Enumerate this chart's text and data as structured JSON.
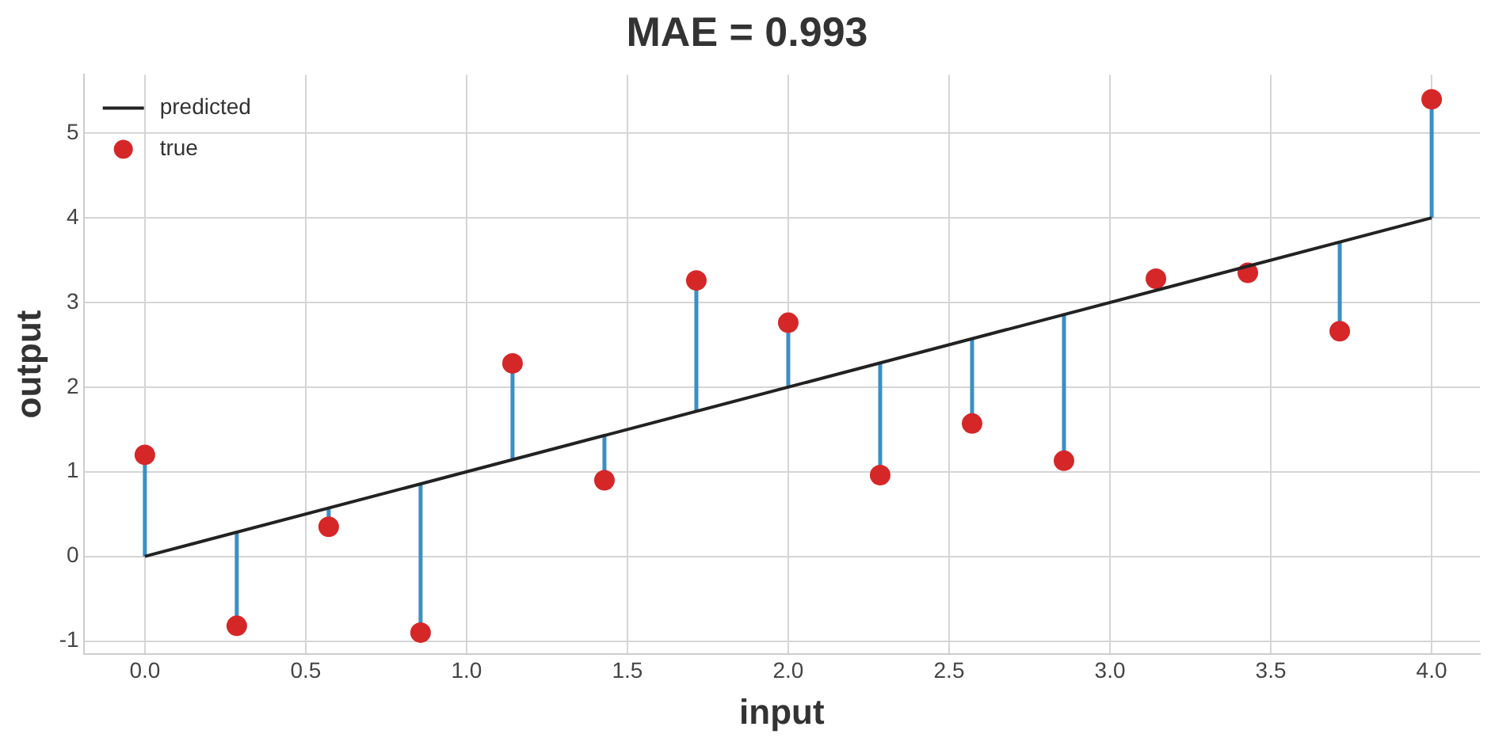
{
  "chart_data": {
    "type": "scatter",
    "title": "MAE = 0.993",
    "xlabel": "input",
    "ylabel": "output",
    "series": [
      {
        "name": "predicted",
        "type": "line",
        "color": "#222222",
        "marker": "none",
        "x": [
          0,
          4
        ],
        "values": [
          0,
          4
        ]
      },
      {
        "name": "true",
        "type": "scatter",
        "color": "#d62728",
        "marker": "circle",
        "x": [
          0,
          0.2857,
          0.5714,
          0.8571,
          1.1429,
          1.4286,
          1.7143,
          2.0,
          2.2857,
          2.5714,
          2.8571,
          3.1429,
          3.4286,
          3.7143,
          4.0
        ],
        "values": [
          1.2,
          -0.82,
          0.35,
          -0.9,
          2.28,
          0.9,
          3.26,
          2.76,
          0.96,
          1.57,
          1.13,
          3.28,
          3.35,
          2.66,
          5.4
        ],
        "errors": [
          [
            0,
            1.2
          ],
          [
            -0.82,
            0.2857
          ],
          [
            0.35,
            0.5714
          ],
          [
            -0.9,
            0.8571
          ],
          [
            1.1429,
            2.28
          ],
          [
            0.9,
            1.4286
          ],
          [
            1.7143,
            3.26
          ],
          [
            2.0,
            2.76
          ],
          [
            0.96,
            2.2857
          ],
          [
            1.57,
            2.5714
          ],
          [
            1.13,
            2.8571
          ],
          null,
          null,
          [
            2.66,
            3.7143
          ],
          [
            4.0,
            5.4
          ]
        ]
      }
    ],
    "xlim": [
      -0.19,
      4.15
    ],
    "xticks": [
      {
        "value": 0,
        "label": "0.0"
      },
      0.5,
      {
        "value": 1,
        "label": "1.0"
      },
      1.5,
      {
        "value": 2,
        "label": "2.0"
      },
      2.5,
      {
        "value": 3,
        "label": "3.0"
      },
      3.5,
      {
        "value": 4,
        "label": "4.0"
      }
    ],
    "ylim": [
      -1.15,
      5.69
    ],
    "yticks": [
      -1,
      0,
      1,
      2,
      3,
      4,
      5
    ],
    "grid": true,
    "legend": "top left"
  }
}
